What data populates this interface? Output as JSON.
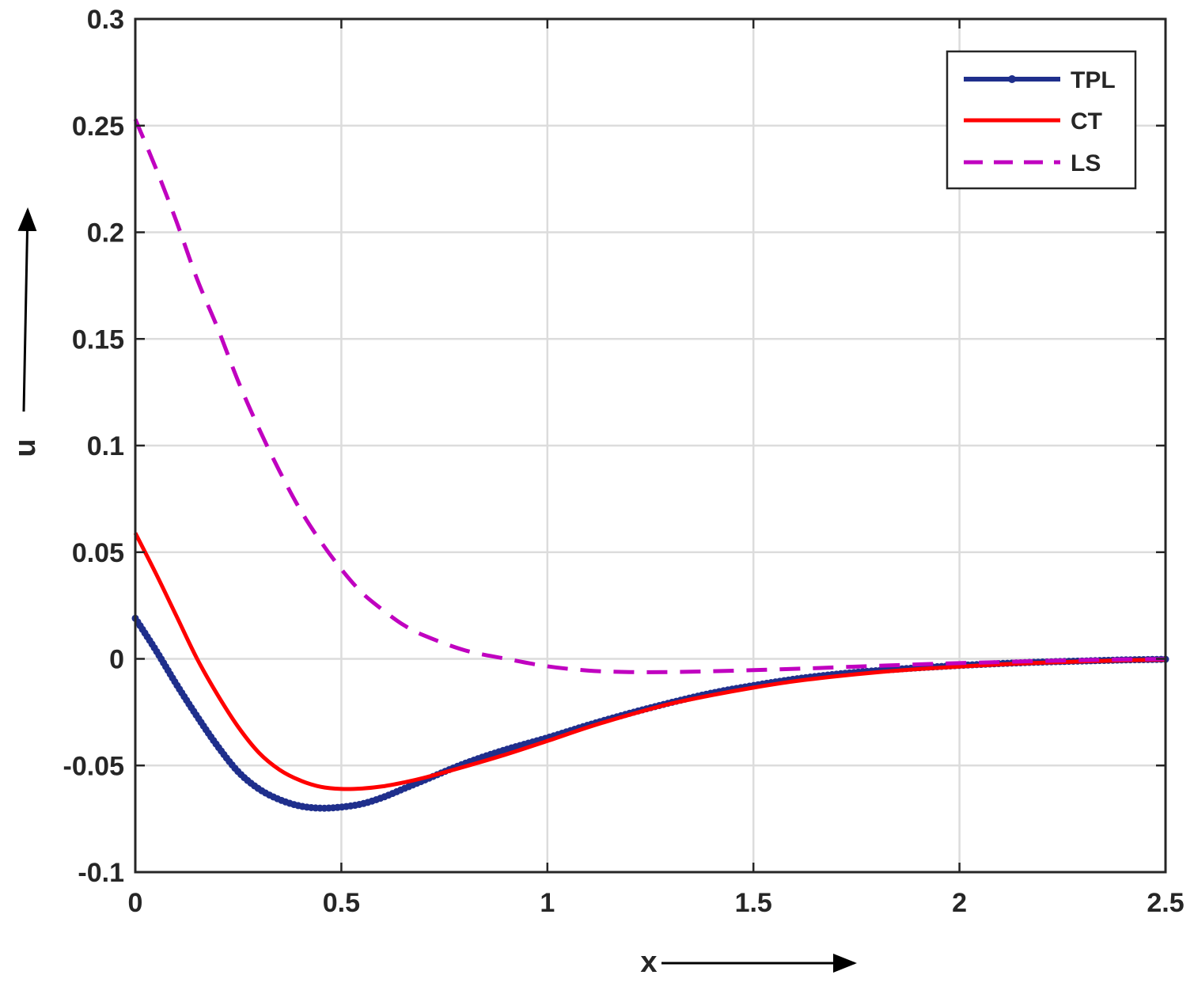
{
  "chart_data": {
    "type": "line",
    "xlabel": "x",
    "ylabel": "u",
    "xlim": [
      0,
      2.5
    ],
    "ylim": [
      -0.1,
      0.3
    ],
    "xticks": [
      0,
      0.5,
      1,
      1.5,
      2,
      2.5
    ],
    "xtick_labels": [
      "0",
      "0.5",
      "1",
      "1.5",
      "2",
      "2.5"
    ],
    "yticks": [
      -0.1,
      -0.05,
      0,
      0.05,
      0.1,
      0.15,
      0.2,
      0.25,
      0.3
    ],
    "ytick_labels": [
      "-0.1",
      "-0.05",
      "0",
      "0.05",
      "0.1",
      "0.15",
      "0.2",
      "0.25",
      "0.3"
    ],
    "grid": true,
    "legend_position": "top-right",
    "series": [
      {
        "name": "TPL",
        "color": "#1f2f8c",
        "style": "solid-with-dot-markers",
        "x": [
          0,
          0.05,
          0.1,
          0.15,
          0.2,
          0.25,
          0.3,
          0.35,
          0.4,
          0.45,
          0.5,
          0.55,
          0.6,
          0.65,
          0.7,
          0.8,
          0.9,
          1.0,
          1.1,
          1.2,
          1.3,
          1.4,
          1.5,
          1.6,
          1.7,
          1.8,
          1.9,
          2.0,
          2.1,
          2.2,
          2.3,
          2.4,
          2.5
        ],
        "y": [
          0.019,
          0.004,
          -0.012,
          -0.027,
          -0.041,
          -0.053,
          -0.061,
          -0.066,
          -0.069,
          -0.07,
          -0.0695,
          -0.068,
          -0.065,
          -0.061,
          -0.057,
          -0.049,
          -0.0425,
          -0.037,
          -0.031,
          -0.0255,
          -0.0205,
          -0.016,
          -0.0125,
          -0.0095,
          -0.0072,
          -0.0055,
          -0.0042,
          -0.0031,
          -0.0022,
          -0.0015,
          -0.001,
          -0.0005,
          -0.0002
        ]
      },
      {
        "name": "CT",
        "color": "#ff0000",
        "style": "solid",
        "x": [
          0,
          0.05,
          0.1,
          0.15,
          0.2,
          0.25,
          0.3,
          0.35,
          0.4,
          0.45,
          0.5,
          0.55,
          0.6,
          0.65,
          0.7,
          0.8,
          0.9,
          1.0,
          1.1,
          1.2,
          1.3,
          1.4,
          1.5,
          1.6,
          1.7,
          1.8,
          1.9,
          2.0,
          2.1,
          2.2,
          2.3,
          2.4,
          2.5
        ],
        "y": [
          0.059,
          0.04,
          0.02,
          0.0,
          -0.017,
          -0.032,
          -0.044,
          -0.052,
          -0.057,
          -0.06,
          -0.061,
          -0.0608,
          -0.0598,
          -0.058,
          -0.0558,
          -0.0505,
          -0.0448,
          -0.0385,
          -0.032,
          -0.0262,
          -0.021,
          -0.017,
          -0.0135,
          -0.0105,
          -0.0082,
          -0.0063,
          -0.0048,
          -0.0036,
          -0.0026,
          -0.0018,
          -0.0012,
          -0.0007,
          -0.0004
        ]
      },
      {
        "name": "LS",
        "color": "#c000c0",
        "style": "dashed",
        "x": [
          0,
          0.05,
          0.1,
          0.15,
          0.2,
          0.25,
          0.3,
          0.35,
          0.4,
          0.45,
          0.5,
          0.55,
          0.6,
          0.65,
          0.7,
          0.8,
          0.9,
          1.0,
          1.1,
          1.2,
          1.3,
          1.4,
          1.5,
          1.6,
          1.7,
          1.8,
          1.9,
          2.0,
          2.1,
          2.2,
          2.3,
          2.4,
          2.5
        ],
        "y": [
          0.253,
          0.23,
          0.205,
          0.178,
          0.155,
          0.13,
          0.108,
          0.088,
          0.07,
          0.055,
          0.042,
          0.031,
          0.023,
          0.016,
          0.011,
          0.004,
          0.0,
          -0.0035,
          -0.0055,
          -0.0062,
          -0.0062,
          -0.0058,
          -0.0053,
          -0.0047,
          -0.004,
          -0.0033,
          -0.0026,
          -0.002,
          -0.0015,
          -0.001,
          -0.0006,
          -0.0003,
          -0.0001
        ]
      }
    ]
  }
}
